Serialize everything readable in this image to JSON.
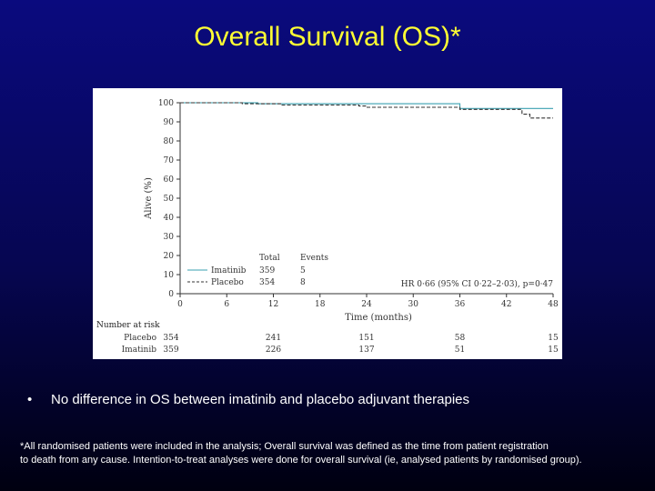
{
  "slide": {
    "title": "Overall Survival (OS)*",
    "bullet": "No difference in OS between imatinib and placebo adjuvant therapies",
    "bullet_marker": "•",
    "footnote_line1": "*All randomised patients were included in the analysis; Overall survival was defined as the time from patient registration",
    "footnote_line2": "to death from any cause. Intention-to-treat analyses were done for overall survival (ie, analysed patients by randomised group)."
  },
  "chart_data": {
    "type": "line",
    "xlabel": "Time (months)",
    "ylabel": "Alive (%)",
    "xlim": [
      0,
      48
    ],
    "ylim": [
      0,
      100
    ],
    "x_ticks": [
      0,
      6,
      12,
      18,
      24,
      30,
      36,
      42,
      48
    ],
    "y_ticks": [
      0,
      10,
      20,
      30,
      40,
      50,
      60,
      70,
      80,
      90,
      100
    ],
    "legend": {
      "total_header": "Total",
      "events_header": "Events",
      "entries": [
        {
          "name": "Imatinib",
          "total": "359",
          "events": "5"
        },
        {
          "name": "Placebo",
          "total": "354",
          "events": "8"
        }
      ]
    },
    "annotation": "HR 0·66 (95% CI 0·22–2·03), p=0·47",
    "series": [
      {
        "name": "Imatinib",
        "style": "solid",
        "color": "#3aa0b0",
        "x": [
          0,
          10,
          10,
          36,
          36,
          48
        ],
        "y": [
          100,
          100,
          99.5,
          99.5,
          97,
          97
        ]
      },
      {
        "name": "Placebo",
        "style": "dashed",
        "color": "#333333",
        "x": [
          0,
          8,
          8,
          13,
          13,
          23,
          23,
          24,
          24,
          36,
          36,
          44,
          44,
          45,
          45,
          48
        ],
        "y": [
          100,
          100,
          99.5,
          99.5,
          98.8,
          98.8,
          98.3,
          98.3,
          97.6,
          97.6,
          96.5,
          96.5,
          94,
          94,
          92,
          92
        ]
      }
    ],
    "risk_table": {
      "header": "Number at risk",
      "x": [
        0,
        12,
        24,
        36,
        48
      ],
      "rows": [
        {
          "name": "Placebo",
          "values": [
            "354",
            "241",
            "151",
            "58",
            "15"
          ]
        },
        {
          "name": "Imatinib",
          "values": [
            "359",
            "226",
            "137",
            "51",
            "15"
          ]
        }
      ]
    }
  }
}
